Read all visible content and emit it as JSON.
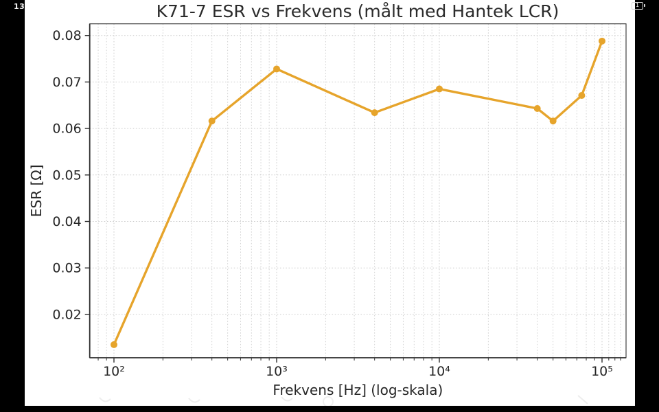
{
  "status_bar": {
    "clock": "13",
    "battery_level": "1"
  },
  "chart_data": {
    "type": "line",
    "title": "K71-7 ESR vs Frekvens (målt med Hantek LCR)",
    "xlabel": "Frekvens [Hz] (log-skala)",
    "ylabel": "ESR [Ω]",
    "x_scale": "log",
    "x": [
      100,
      400,
      1000,
      4000,
      10000,
      40000,
      50000,
      75000,
      100000
    ],
    "y": [
      0.0135,
      0.0616,
      0.0728,
      0.0634,
      0.0685,
      0.0643,
      0.0616,
      0.0671,
      0.0788
    ],
    "xlim": [
      71,
      141000
    ],
    "ylim": [
      0.0107,
      0.0825
    ],
    "x_ticks": [
      100,
      1000,
      10000,
      100000
    ],
    "x_tick_labels": [
      "10²",
      "10³",
      "10⁴",
      "10⁵"
    ],
    "y_ticks": [
      0.02,
      0.03,
      0.04,
      0.05,
      0.06,
      0.07,
      0.08
    ],
    "grid": true,
    "legend": false,
    "line_color": "#E6A42B",
    "marker_color": "#E6A42B",
    "grid_color": "#cccccc",
    "spine_color": "#2f2f2f",
    "text_color": "#262626"
  }
}
